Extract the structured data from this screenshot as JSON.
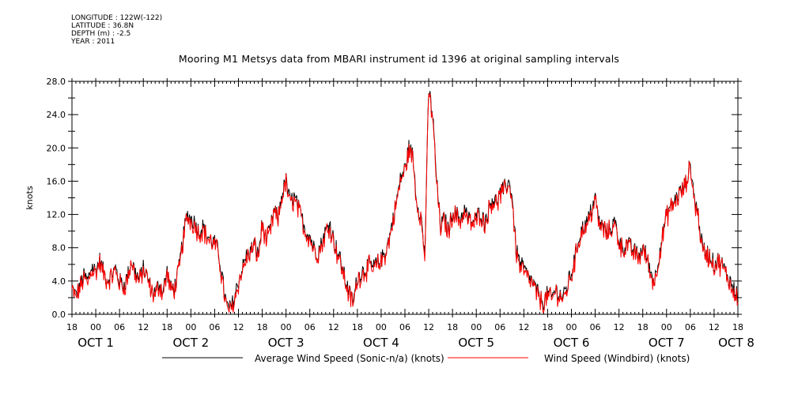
{
  "meta": {
    "longitude": "LONGITUDE : 122W(-122)",
    "latitude": "LATITUDE : 36.8N",
    "depth": "DEPTH (m) : -2.5",
    "year": "YEAR : 2011"
  },
  "chart_data": {
    "type": "line",
    "title": "Mooring M1 Metsys data from MBARI instrument id 1396 at original sampling intervals",
    "ylabel": "knots",
    "xlabel": "",
    "ylim": [
      0,
      28
    ],
    "yticks": [
      "0.0",
      "4.0",
      "8.0",
      "12.0",
      "16.0",
      "20.0",
      "24.0",
      "28.0"
    ],
    "xlim_hours": [
      0,
      168
    ],
    "xtick_labels": [
      "18",
      "00",
      "06",
      "12",
      "18",
      "00",
      "06",
      "12",
      "18",
      "00",
      "06",
      "12",
      "18",
      "00",
      "06",
      "12",
      "18",
      "00",
      "06",
      "12",
      "18",
      "00",
      "06",
      "12",
      "18",
      "00",
      "06",
      "12",
      "18"
    ],
    "day_labels": [
      {
        "hour": 6,
        "text": "OCT  1"
      },
      {
        "hour": 30,
        "text": "OCT  2"
      },
      {
        "hour": 54,
        "text": "OCT  3"
      },
      {
        "hour": 78,
        "text": "OCT  4"
      },
      {
        "hour": 102,
        "text": "OCT  5"
      },
      {
        "hour": 126,
        "text": "OCT  6"
      },
      {
        "hour": 150,
        "text": "OCT  7"
      },
      {
        "hour": 174,
        "text": "OCT  8"
      }
    ],
    "legend_placement": "bottom",
    "series": [
      {
        "name": "Average Wind Speed (Sonic-n/a) (knots)",
        "color": "#000000",
        "x": [
          0,
          1,
          2,
          3,
          4,
          5,
          6,
          7,
          8,
          9,
          10,
          11,
          12,
          13,
          14,
          15,
          16,
          17,
          18,
          19,
          20,
          21,
          22,
          23,
          24,
          25,
          26,
          27,
          28,
          29,
          30,
          31,
          32,
          33,
          34,
          35,
          36,
          37,
          38,
          39,
          40,
          41,
          42,
          43,
          44,
          45,
          46,
          47,
          48,
          49,
          50,
          51,
          52,
          53,
          54,
          55,
          56,
          57,
          58,
          59,
          60,
          61,
          62,
          63,
          64,
          65,
          66,
          67,
          68,
          69,
          70,
          71,
          72,
          73,
          74,
          75,
          76,
          77,
          78,
          79,
          80,
          81,
          82,
          83,
          84,
          85,
          86,
          87,
          88,
          89,
          90,
          91,
          92,
          93,
          94,
          95,
          96,
          97,
          98,
          99,
          100,
          101,
          102,
          103,
          104,
          105,
          106,
          107,
          108,
          109,
          110,
          111,
          112,
          113,
          114,
          115,
          116,
          117,
          118,
          119,
          120,
          121,
          122,
          123,
          124,
          125,
          126,
          127,
          128,
          129,
          130,
          131,
          132,
          133,
          134,
          135,
          136,
          137,
          138,
          139,
          140,
          141,
          142,
          143,
          144,
          145,
          146,
          147,
          148,
          149,
          150,
          151,
          152,
          153,
          154,
          155,
          156,
          157,
          158,
          159,
          160,
          161,
          162,
          163,
          164,
          165,
          166,
          167,
          168
        ],
        "y": [
          3.2,
          2.2,
          3.5,
          4.5,
          4.0,
          5.8,
          5.2,
          6.5,
          5.0,
          4.2,
          4.8,
          5.5,
          4.0,
          3.5,
          4.5,
          6.5,
          5.0,
          4.2,
          5.5,
          4.5,
          3.0,
          2.5,
          3.8,
          2.8,
          5.2,
          3.0,
          3.5,
          5.5,
          9.0,
          12.0,
          11.5,
          11.0,
          10.0,
          10.5,
          9.5,
          9.0,
          8.5,
          7.5,
          4.0,
          1.0,
          0.6,
          2.0,
          4.0,
          5.5,
          7.0,
          7.5,
          8.5,
          7.0,
          11.0,
          9.0,
          10.0,
          12.5,
          11.5,
          14.5,
          16.0,
          13.5,
          14.0,
          13.0,
          11.5,
          10.0,
          9.5,
          8.0,
          7.5,
          8.5,
          10.0,
          11.0,
          9.0,
          7.5,
          6.0,
          4.0,
          2.5,
          1.5,
          4.5,
          5.0,
          5.5,
          6.0,
          5.5,
          6.2,
          6.5,
          7.5,
          9.0,
          11.5,
          14.0,
          16.5,
          17.5,
          20.0,
          19.0,
          13.5,
          12.0,
          7.0,
          27.0,
          24.0,
          16.0,
          10.5,
          11.5,
          10.0,
          12.5,
          12.0,
          11.5,
          12.5,
          11.5,
          11.0,
          11.5,
          12.5,
          11.0,
          12.5,
          14.0,
          13.5,
          14.5,
          15.0,
          16.0,
          14.5,
          8.0,
          6.0,
          5.5,
          4.5,
          4.0,
          3.0,
          2.0,
          1.5,
          2.5,
          2.0,
          3.0,
          2.5,
          2.0,
          3.5,
          5.0,
          7.0,
          9.5,
          10.5,
          11.0,
          12.5,
          14.0,
          11.0,
          10.5,
          10.0,
          10.5,
          11.0,
          9.0,
          8.0,
          8.5,
          8.0,
          7.5,
          7.0,
          8.0,
          7.0,
          5.0,
          4.0,
          7.0,
          9.5,
          12.0,
          13.0,
          13.5,
          14.5,
          15.0,
          16.0,
          18.0,
          14.0,
          12.0,
          8.0,
          7.5,
          7.0,
          6.0,
          6.5,
          6.0,
          5.0,
          4.0,
          3.0,
          2.5
        ],
        "y_note": "sampled hourly; high-frequency scatter added by renderer"
      },
      {
        "name": "Wind Speed (Windbird) (knots)",
        "color": "#ff0000"
      }
    ]
  }
}
